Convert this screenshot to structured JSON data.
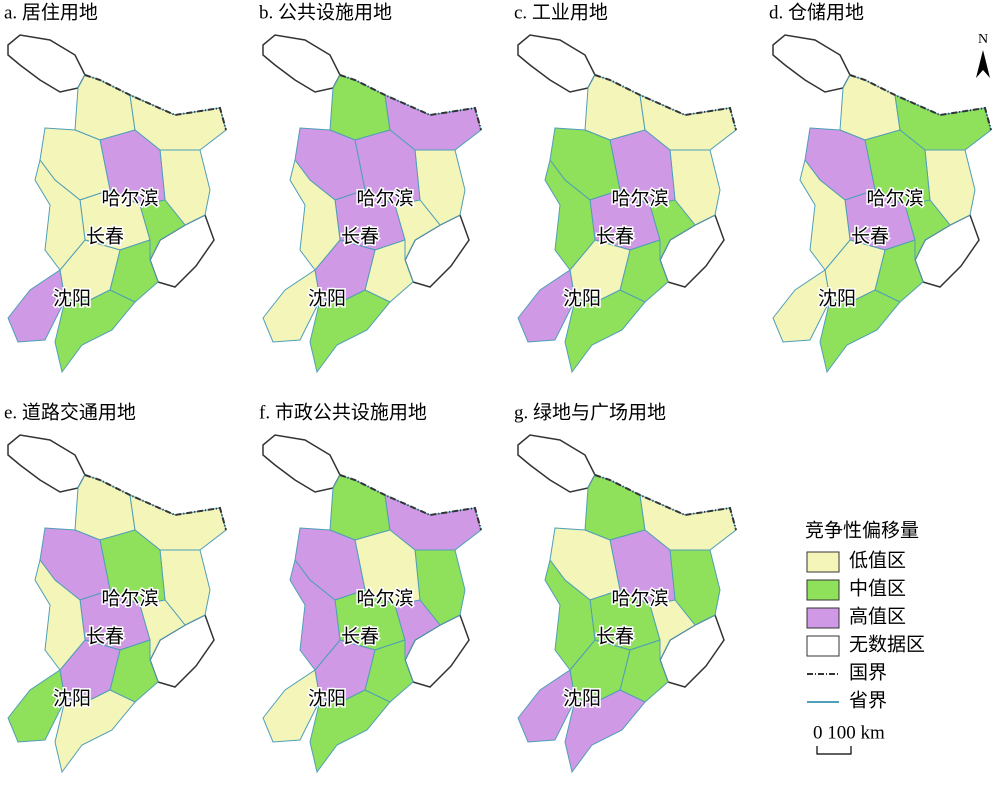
{
  "panels": [
    {
      "title": "a. 居住用地"
    },
    {
      "title": "b. 公共设施用地"
    },
    {
      "title": "c. 工业用地"
    },
    {
      "title": "d. 仓储用地"
    },
    {
      "title": "e. 道路交通用地"
    },
    {
      "title": "f. 市政公共设施用地"
    },
    {
      "title": "g. 绿地与广场用地"
    }
  ],
  "cities": [
    "哈尔滨",
    "长春",
    "沈阳"
  ],
  "north": "N",
  "legend": {
    "title": "竞争性偏移量",
    "items": [
      {
        "label": "低值区",
        "color": "#f4f5b9"
      },
      {
        "label": "中值区",
        "color": "#8fe05a"
      },
      {
        "label": "高值区",
        "color": "#cf99e6"
      },
      {
        "label": "无数据区",
        "color": "#ffffff"
      }
    ],
    "lines": [
      {
        "label": "国界",
        "color": "#333333"
      },
      {
        "label": "省界",
        "color": "#4f9fb8"
      }
    ],
    "scale": "0  100 km"
  }
}
